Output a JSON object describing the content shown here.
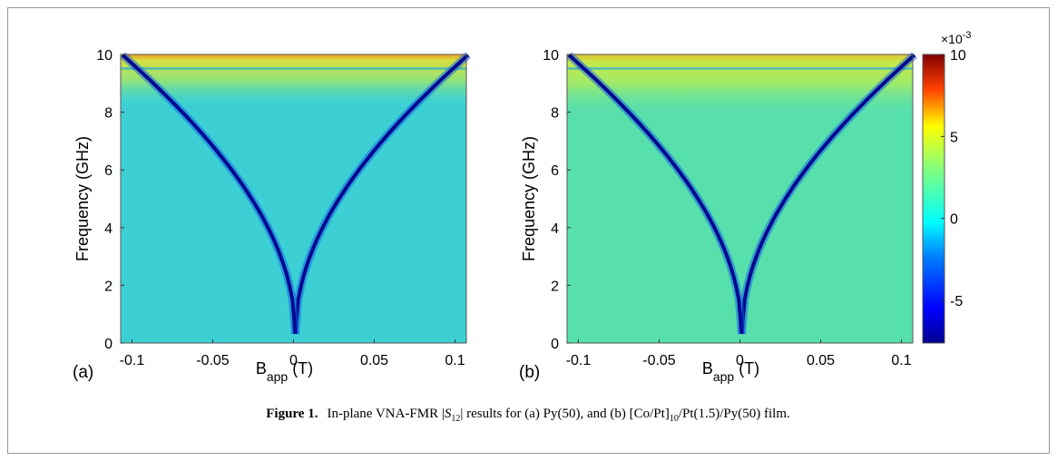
{
  "chart_data": [
    {
      "type": "heatmap",
      "panel_label": "(a)",
      "ylabel": "Frequency (GHz)",
      "xlabel": [
        "B",
        "app",
        "(T)"
      ],
      "xlim": [
        -0.107,
        0.107
      ],
      "xticks": [
        -0.1,
        -0.05,
        0,
        0.05,
        0.1
      ],
      "ylim": [
        0,
        10
      ],
      "yticks": [
        0,
        2,
        4,
        6,
        8,
        10
      ]
    },
    {
      "type": "heatmap",
      "panel_label": "(b)",
      "ylabel": "Frequency (GHz)",
      "xlabel": [
        "B",
        "app",
        "(T)"
      ],
      "xlim": [
        -0.107,
        0.107
      ],
      "xticks": [
        -0.1,
        -0.05,
        0,
        0.05,
        0.1
      ],
      "ylim": [
        0,
        10
      ],
      "yticks": [
        0,
        2,
        4,
        6,
        8,
        10
      ],
      "colorbar": {
        "exponent": [
          "×10",
          "-3"
        ],
        "lim": [
          -7.6,
          10
        ],
        "ticks": [
          -5,
          0,
          5,
          10
        ]
      }
    }
  ],
  "caption": [
    "Figure 1.",
    "In-plane VNA-FMR |",
    "S",
    "12",
    "| results for (a) Py(50), and (b) [Co/Pt]",
    "10",
    "/Pt(1.5)/Py(50) film."
  ]
}
